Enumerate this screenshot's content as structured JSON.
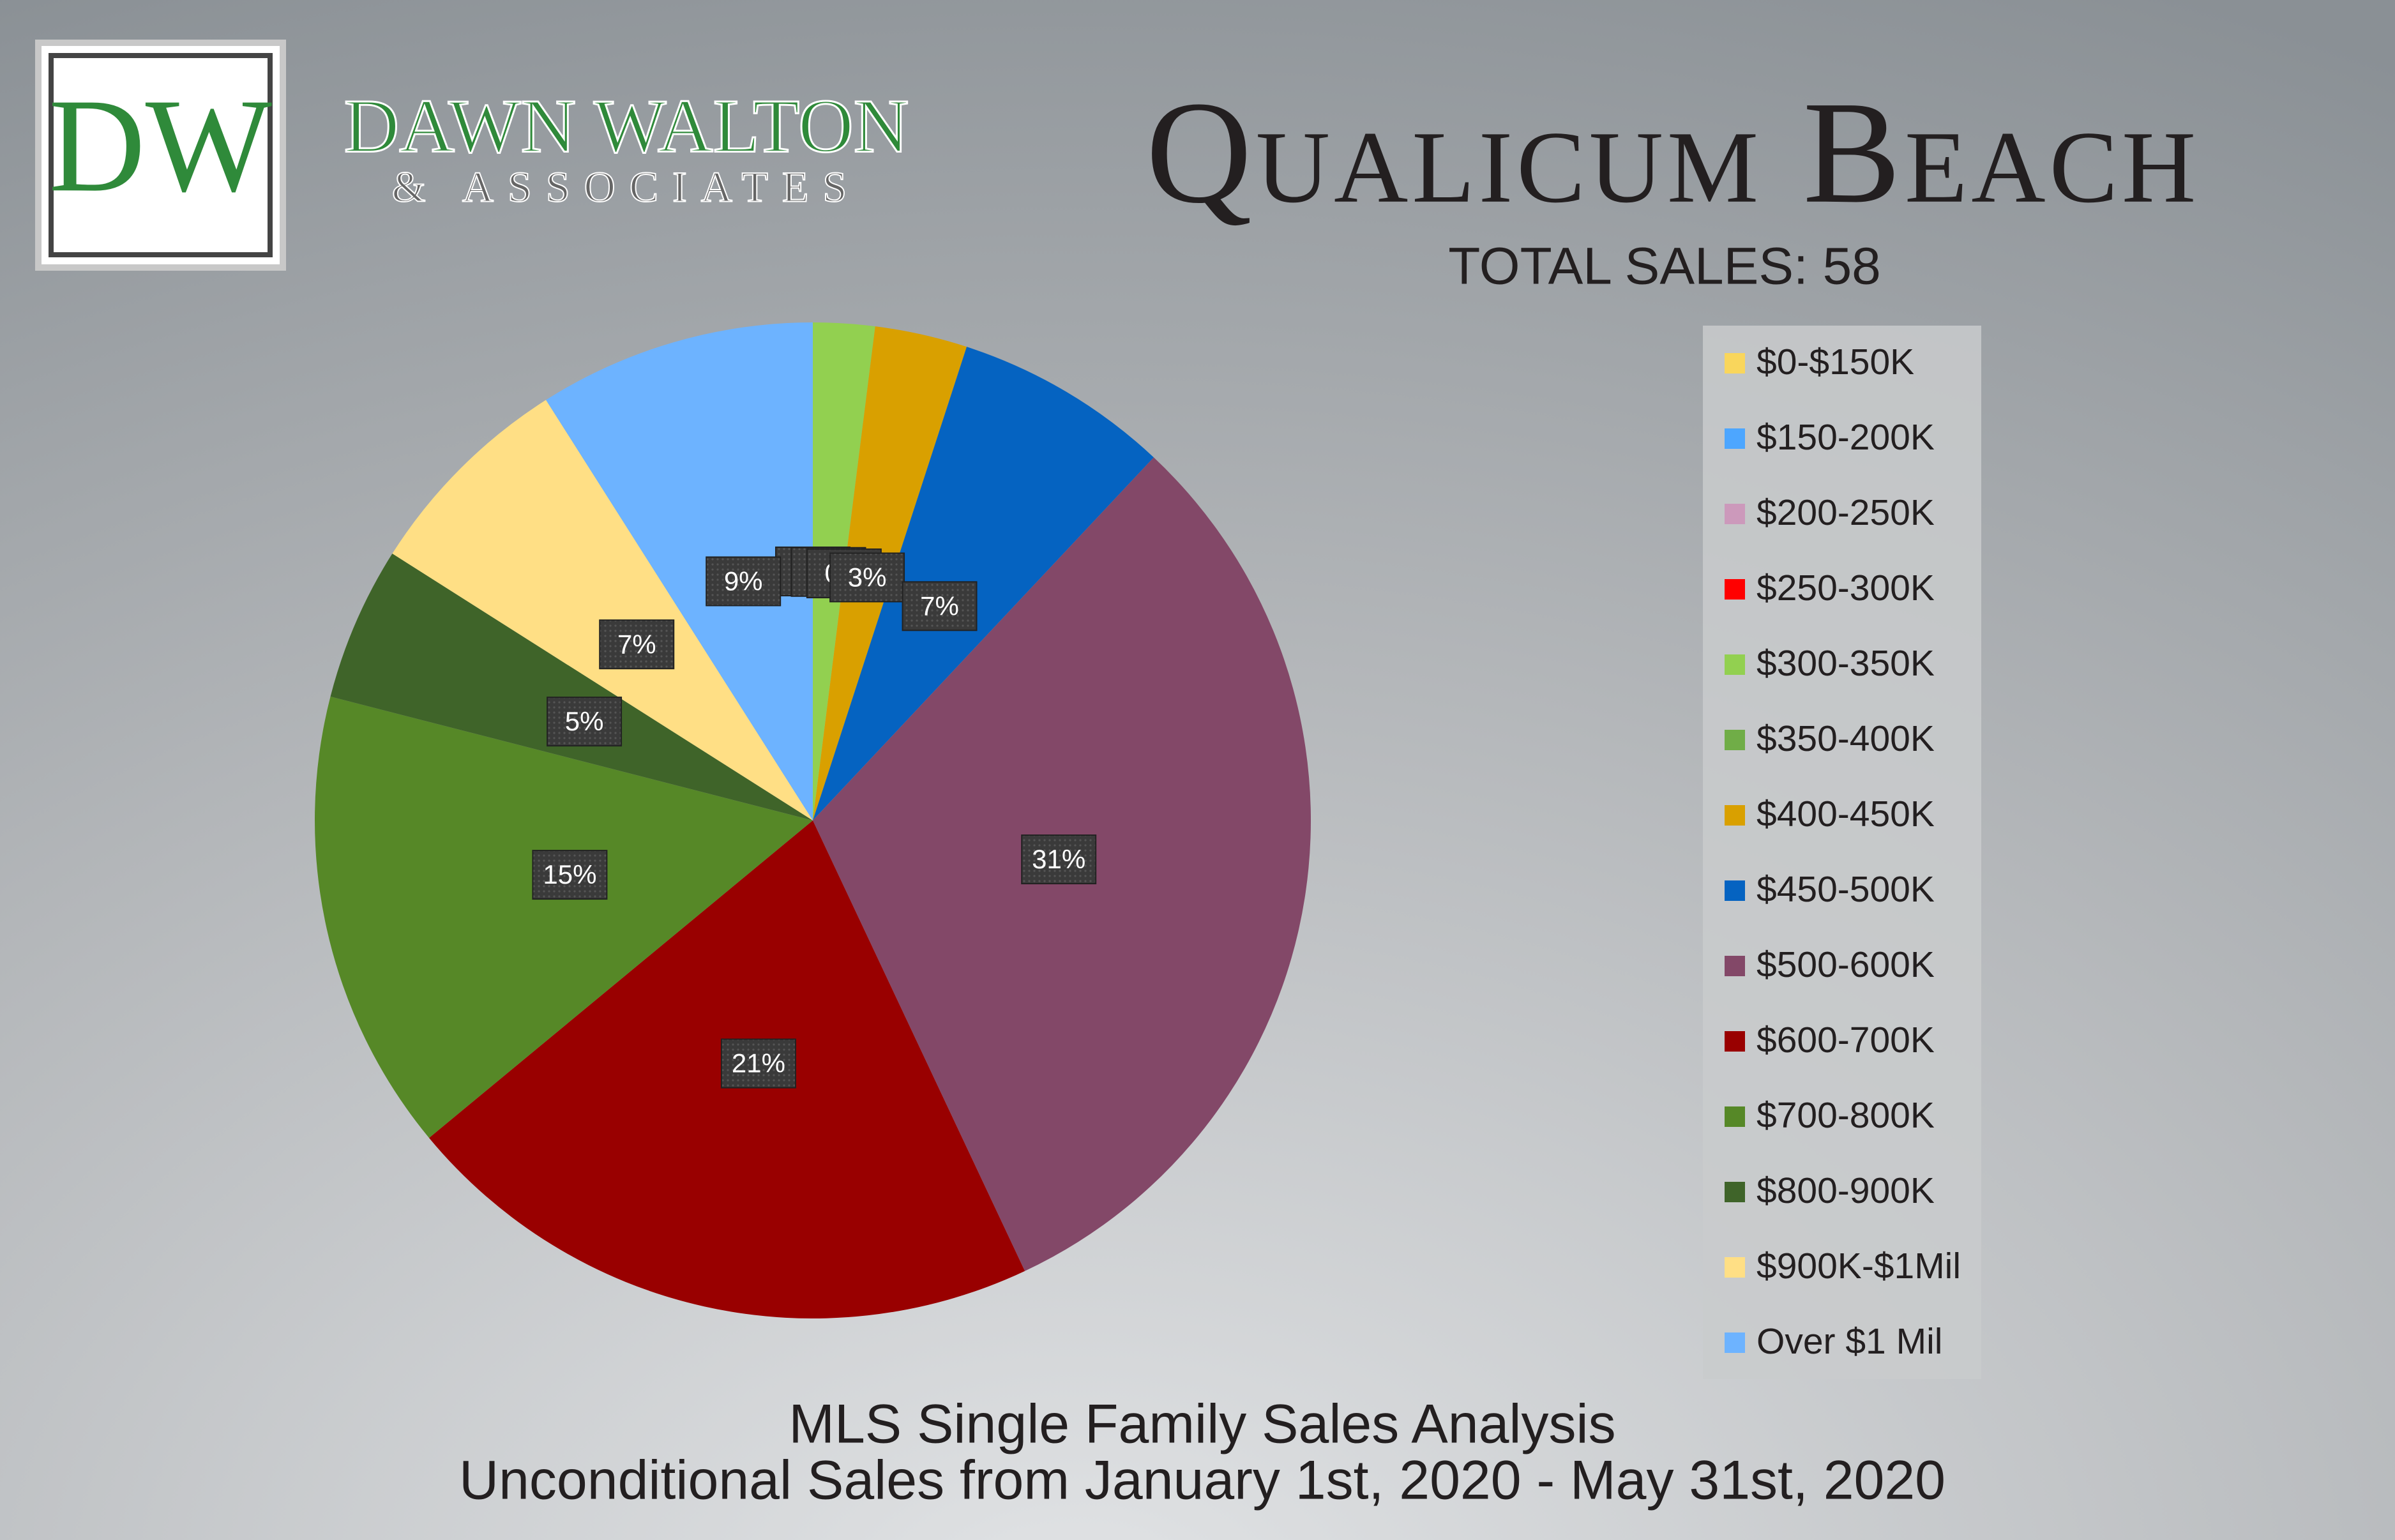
{
  "header": {
    "logo_initials": "DW",
    "company": "DAWN WALTON",
    "company_sub": "& ASSOCIATES"
  },
  "chart_data": {
    "type": "pie",
    "title": "Qualicum Beach",
    "subtitle": "TOTAL SALES: 58",
    "categories": [
      "$0-$150K",
      "$150-200K",
      "$200-250K",
      "$250-300K",
      "$300-350K",
      "$350-400K",
      "$400-450K",
      "$450-500K",
      "$500-600K",
      "$600-700K",
      "$700-800K",
      "$800-900K",
      "$900K-$1Mil",
      "Over $1 Mil"
    ],
    "values": [
      0,
      0,
      0,
      0,
      2,
      0,
      3,
      7,
      31,
      21,
      15,
      5,
      7,
      9
    ],
    "value_labels": [
      "0%",
      "0%",
      "0%",
      "0%",
      "2%",
      "0%",
      "3%",
      "7%",
      "31%",
      "21%",
      "15%",
      "5%",
      "7%",
      "9%"
    ],
    "colors": [
      "#f9d65c",
      "#4da6ff",
      "#cc99bb",
      "#ff0000",
      "#92d050",
      "#70ad47",
      "#d9a000",
      "#0563c1",
      "#834868",
      "#990000",
      "#568827",
      "#3f6429",
      "#ffdf85",
      "#6db3ff"
    ],
    "legend": "right",
    "notes": [
      "MLS Single Family Sales Analysis",
      "Unconditional Sales from January 1st, 2020 - May 31st, 2020"
    ]
  }
}
